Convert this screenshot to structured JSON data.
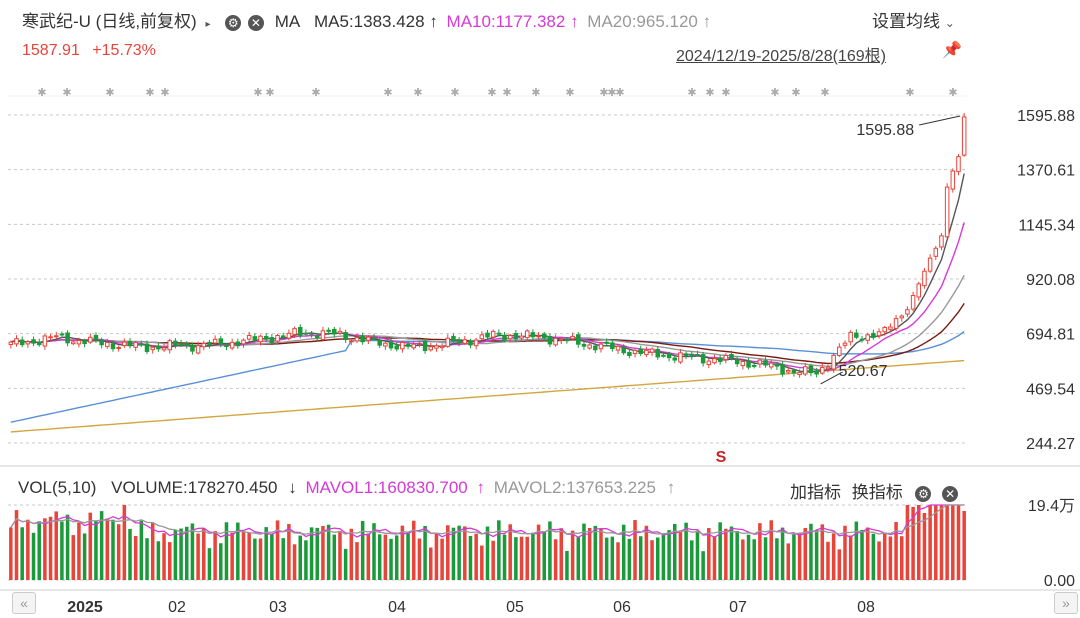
{
  "header": {
    "title": "寒武纪-U (日线,前复权)",
    "ma_label": "MA",
    "ma5": "MA5:1383.428",
    "ma10": "MA10:1177.382",
    "ma20": "MA20:965.120",
    "settings": "设置均线",
    "price": "1587.91",
    "change": "+15.73%",
    "range": "2024/12/19-2025/8/28(169根)"
  },
  "vol_header": {
    "label": "VOL(5,10)",
    "volume": "VOLUME:178270.450",
    "mavol1": "MAVOL1:160830.700",
    "mavol2": "MAVOL2:137653.225",
    "add_indicator": "加指标",
    "switch_indicator": "换指标"
  },
  "annotations": {
    "high": "1595.88",
    "low": "520.67",
    "signal": "S"
  },
  "colors": {
    "up": "#e8443a",
    "down": "#1a9a3a",
    "ma5": "#555555",
    "ma10": "#d63ad6",
    "ma20": "#999999",
    "ma30": "#7a1a10",
    "ma60": "#5a8fd8",
    "ma120": "#d4a640",
    "highlight": "#f2c341"
  },
  "chart_data": {
    "type": "candlestick",
    "y_ticks": [
      "1595.88",
      "1370.61",
      "1145.34",
      "920.08",
      "694.81",
      "469.54",
      "244.27"
    ],
    "ylim": [
      244.27,
      1595.88
    ],
    "vol_ticks": [
      "19.4万",
      "0.00"
    ],
    "x_labels": [
      "2025",
      "02",
      "03",
      "04",
      "05",
      "06",
      "07",
      "08"
    ],
    "bars": 169,
    "high": 1595.88,
    "low": 520.67,
    "segments": [
      [
        0,
        650
      ],
      [
        8,
        680
      ],
      [
        16,
        655
      ],
      [
        24,
        640
      ],
      [
        36,
        650
      ],
      [
        46,
        680
      ],
      [
        52,
        700
      ],
      [
        58,
        690
      ],
      [
        64,
        660
      ],
      [
        70,
        640
      ],
      [
        76,
        650
      ],
      [
        86,
        690
      ],
      [
        94,
        680
      ],
      [
        102,
        650
      ],
      [
        110,
        620
      ],
      [
        118,
        600
      ],
      [
        124,
        590
      ],
      [
        132,
        570
      ],
      [
        138,
        540
      ],
      [
        142,
        530
      ],
      [
        148,
        680
      ],
      [
        154,
        700
      ],
      [
        158,
        800
      ],
      [
        161,
        950
      ],
      [
        164,
        1100
      ],
      [
        165,
        1300
      ],
      [
        166,
        1370
      ],
      [
        167,
        1420
      ],
      [
        168,
        1588
      ]
    ]
  }
}
